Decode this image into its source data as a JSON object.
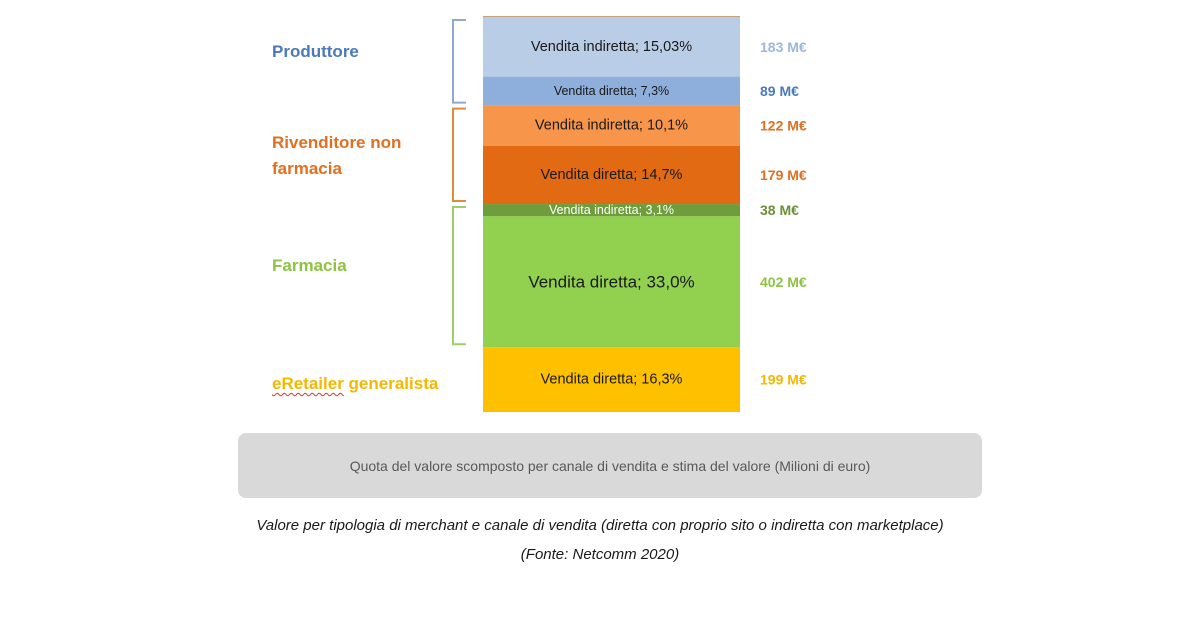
{
  "chart_data": {
    "type": "bar",
    "groups": [
      {
        "name": "Produttore",
        "color": "#4a7ab9",
        "brace_color": "#8fa9d4",
        "segments": [
          "indiretta",
          "diretta"
        ]
      },
      {
        "name": "Rivenditore non farmacia",
        "color": "#e07020",
        "brace_color": "#e08a3a",
        "segments": [
          "indiretta2",
          "diretta2"
        ]
      },
      {
        "name": "Farmacia",
        "color": "#8cc440",
        "brace_color": "#9ccf6a",
        "segments": [
          "indiretta3",
          "diretta3"
        ]
      },
      {
        "name_prefix": "eRetailer",
        "name_suffix": " generalista",
        "color": "#f5b800",
        "segments": [
          "diretta4"
        ]
      }
    ],
    "segments": [
      {
        "id": "indiretta",
        "label": "Vendita indiretta; 15,03%",
        "share": 15.03,
        "value_label": "183 M€",
        "value": 183,
        "fill": "#b9cde6",
        "value_color": "#9db8e0"
      },
      {
        "id": "diretta",
        "label": "Vendita diretta; 7,3%",
        "share": 7.3,
        "value_label": "89 M€",
        "value": 89,
        "fill": "#8eaedb",
        "value_color": "#4a7ab9"
      },
      {
        "id": "indiretta2",
        "label": "Vendita indiretta; 10,1%",
        "share": 10.1,
        "value_label": "122 M€",
        "value": 122,
        "fill": "#f7964b",
        "value_color": "#e07020"
      },
      {
        "id": "diretta2",
        "label": "Vendita diretta; 14,7%",
        "share": 14.7,
        "value_label": "179 M€",
        "value": 179,
        "fill": "#e26a12",
        "value_color": "#e07020"
      },
      {
        "id": "indiretta3",
        "label": "Vendita indiretta; 3,1%",
        "share": 3.1,
        "value_label": "38 M€",
        "value": 38,
        "fill": "#6f9d3c",
        "value_color": "#6b8f35"
      },
      {
        "id": "diretta3",
        "label": "Vendita diretta; 33,0%",
        "share": 33.0,
        "value_label": "402 M€",
        "value": 402,
        "fill": "#92d050",
        "value_color": "#8cc440"
      },
      {
        "id": "diretta4",
        "label": "Vendita diretta; 16,3%",
        "share": 16.3,
        "value_label": "199 M€",
        "value": 199,
        "fill": "#ffc000",
        "value_color": "#f5b800"
      }
    ],
    "legend_box": "Quota del valore scomposto per canale di vendita e stima del valore (Milioni di euro)"
  },
  "caption": {
    "line1": "Valore per tipologia di merchant e canale di vendita (diretta con proprio sito o indiretta con marketplace)",
    "line2": "(Fonte: Netcomm 2020)"
  }
}
